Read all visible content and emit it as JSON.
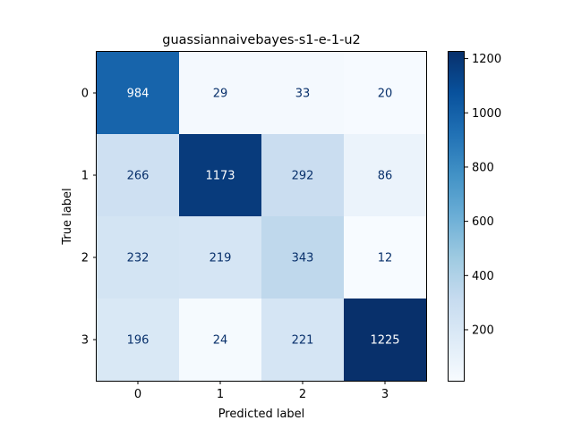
{
  "chart_data": {
    "type": "heatmap",
    "title": "guassiannaivebayes-s1-e-1-u2",
    "xlabel": "Predicted label",
    "ylabel": "True label",
    "x_categories": [
      "0",
      "1",
      "2",
      "3"
    ],
    "y_categories": [
      "0",
      "1",
      "2",
      "3"
    ],
    "values": [
      [
        984,
        29,
        33,
        20
      ],
      [
        266,
        1173,
        292,
        86
      ],
      [
        232,
        219,
        343,
        12
      ],
      [
        196,
        24,
        221,
        1225
      ]
    ],
    "colormap": "Blues",
    "color_range": [
      12,
      1225
    ],
    "colorbar_ticks": [
      "200",
      "400",
      "600",
      "800",
      "1000",
      "1200"
    ],
    "colorbar_tick_values": [
      200,
      400,
      600,
      800,
      1000,
      1200
    ],
    "colors": {
      "text_dark": "#08306b",
      "text_light": "#ffffff"
    }
  }
}
